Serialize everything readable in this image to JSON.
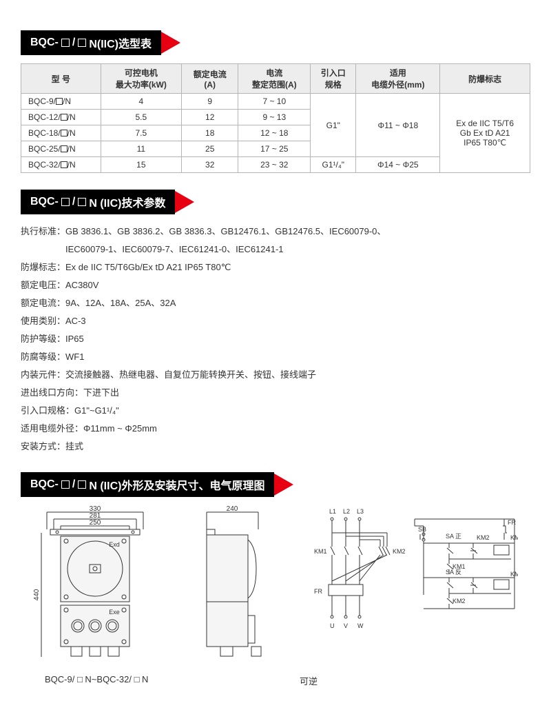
{
  "header1": {
    "prefix": "BQC-",
    "suffix": "N(IIC)选型表"
  },
  "table": {
    "columns": [
      "型 号",
      "可控电机\n最大功率(kW)",
      "额定电流\n(A)",
      "电流\n整定范围(A)",
      "引入口\n规格",
      "适用\n电缆外径(mm)",
      "防爆标志"
    ],
    "rows": [
      {
        "model": "BQC-9/",
        "power": "4",
        "current": "9",
        "range": "7 ~ 10"
      },
      {
        "model": "BQC-12/",
        "power": "5.5",
        "current": "12",
        "range": "9 ~ 13"
      },
      {
        "model": "BQC-18/",
        "power": "7.5",
        "current": "18",
        "range": "12 ~ 18"
      },
      {
        "model": "BQC-25/",
        "power": "11",
        "current": "25",
        "range": "17 ~ 25"
      },
      {
        "model": "BQC-32/",
        "power": "15",
        "current": "32",
        "range": "23 ~ 32"
      }
    ],
    "inlet1": "G1\"",
    "inlet2": "G1¹/₄\"",
    "cable1": "Φ11 ~ Φ18",
    "cable2": "Φ14 ~ Φ25",
    "mark": "Ex de IIC T5/T6\nGb Ex tD A21\nIP65 T80℃"
  },
  "header2": {
    "prefix": "BQC-",
    "suffix": "N (IIC)技术参数"
  },
  "params": [
    {
      "label": "执行标准：",
      "value": "GB 3836.1、GB 3836.2、GB 3836.3、GB12476.1、GB12476.5、IEC60079-0、"
    },
    {
      "label": "",
      "value": "IEC60079-1、IEC60079-7、IEC61241-0、IEC61241-1"
    },
    {
      "label": "防爆标志：",
      "value": "Ex de IIC T5/T6Gb/Ex tD A21 IP65 T80℃"
    },
    {
      "label": "额定电压：",
      "value": "AC380V"
    },
    {
      "label": "额定电流：",
      "value": "9A、12A、18A、25A、32A"
    },
    {
      "label": "使用类别：",
      "value": "AC-3"
    },
    {
      "label": "防护等级：",
      "value": "IP65"
    },
    {
      "label": "防腐等级：",
      "value": "WF1"
    },
    {
      "label": "内装元件：",
      "value": "交流接触器、热继电器、自复位万能转换开关、按钮、接线端子"
    },
    {
      "label": "进出线口方向：",
      "value": "下进下出"
    },
    {
      "label": "引入口规格：",
      "value": "G1\"~G1¹/₄\""
    },
    {
      "label": "适用电缆外径：",
      "value": "Φ11mm ~ Φ25mm"
    },
    {
      "label": "安装方式：",
      "value": "挂式"
    }
  ],
  "header3": {
    "prefix": "BQC-",
    "suffix": "N (IIC)外形及安装尺寸、电气原理图"
  },
  "dims": {
    "w1": "330",
    "w2": "281",
    "w3": "250",
    "h": "440",
    "side_w": "240",
    "exd": "Exd",
    "exe": "Exe"
  },
  "circuit": {
    "L1": "L1",
    "L2": "L2",
    "L3": "L3",
    "U": "U",
    "V": "V",
    "W": "W",
    "KM1": "KM1",
    "KM2": "KM2",
    "FR": "FR",
    "SB": "SB",
    "SA1": "SA 正",
    "SA2": "SA 反"
  },
  "caption1": "BQC-9/ □ N~BQC-32/ □ N",
  "caption2": "可逆"
}
